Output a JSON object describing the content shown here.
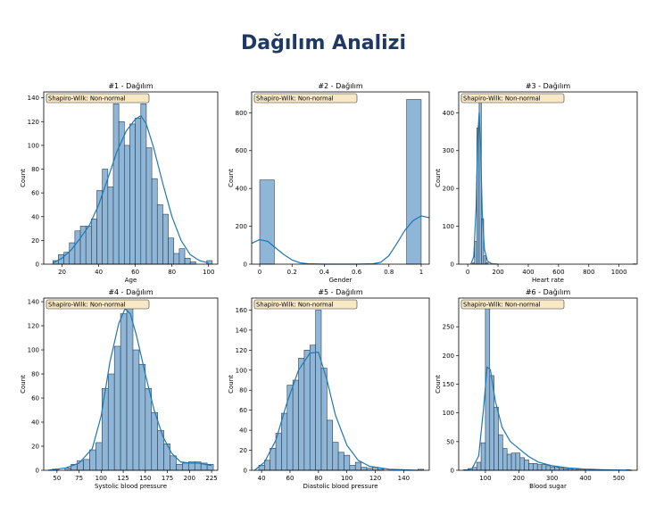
{
  "page": {
    "title": "Dağılım Analizi"
  },
  "colors": {
    "bar_fill": "#8fb6d6",
    "bar_stroke": "#2c3e50",
    "kde_line": "#1f77b4",
    "badge_fill": "#f7e8c6",
    "title_color": "#1f3864"
  },
  "chart_data": [
    {
      "type": "histogram",
      "title": "#1 - Dağılım",
      "badge": "Shapiro-Wilk: Non-normal",
      "xlabel": "Age",
      "ylabel": "Count",
      "xlim": [
        10,
        105
      ],
      "ylim": [
        0,
        145
      ],
      "xticks": [
        20,
        40,
        60,
        80,
        100
      ],
      "yticks": [
        0,
        20,
        40,
        60,
        80,
        100,
        120,
        140
      ],
      "bins": [
        {
          "x0": 15,
          "x1": 18,
          "y": 3
        },
        {
          "x0": 18,
          "x1": 21,
          "y": 8
        },
        {
          "x0": 21,
          "x1": 24,
          "y": 10
        },
        {
          "x0": 24,
          "x1": 27,
          "y": 18
        },
        {
          "x0": 27,
          "x1": 30,
          "y": 28
        },
        {
          "x0": 30,
          "x1": 33,
          "y": 32
        },
        {
          "x0": 33,
          "x1": 36,
          "y": 32
        },
        {
          "x0": 36,
          "x1": 39,
          "y": 38
        },
        {
          "x0": 39,
          "x1": 42,
          "y": 62
        },
        {
          "x0": 42,
          "x1": 45,
          "y": 80
        },
        {
          "x0": 45,
          "x1": 48,
          "y": 65
        },
        {
          "x0": 48,
          "x1": 51,
          "y": 135
        },
        {
          "x0": 51,
          "x1": 54,
          "y": 120
        },
        {
          "x0": 54,
          "x1": 57,
          "y": 100
        },
        {
          "x0": 57,
          "x1": 60,
          "y": 118
        },
        {
          "x0": 60,
          "x1": 63,
          "y": 123
        },
        {
          "x0": 63,
          "x1": 66,
          "y": 135
        },
        {
          "x0": 66,
          "x1": 69,
          "y": 98
        },
        {
          "x0": 69,
          "x1": 72,
          "y": 72
        },
        {
          "x0": 72,
          "x1": 75,
          "y": 50
        },
        {
          "x0": 75,
          "x1": 78,
          "y": 42
        },
        {
          "x0": 78,
          "x1": 81,
          "y": 22
        },
        {
          "x0": 81,
          "x1": 84,
          "y": 9
        },
        {
          "x0": 84,
          "x1": 87,
          "y": 13
        },
        {
          "x0": 87,
          "x1": 90,
          "y": 5
        },
        {
          "x0": 90,
          "x1": 93,
          "y": 2
        },
        {
          "x0": 99,
          "x1": 102,
          "y": 3
        }
      ],
      "kde": [
        [
          15,
          1
        ],
        [
          20,
          5
        ],
        [
          25,
          12
        ],
        [
          30,
          22
        ],
        [
          35,
          33
        ],
        [
          40,
          50
        ],
        [
          45,
          72
        ],
        [
          50,
          95
        ],
        [
          55,
          112
        ],
        [
          60,
          122
        ],
        [
          63,
          125
        ],
        [
          66,
          118
        ],
        [
          70,
          98
        ],
        [
          75,
          68
        ],
        [
          80,
          40
        ],
        [
          85,
          20
        ],
        [
          90,
          8
        ],
        [
          95,
          3
        ],
        [
          100,
          1
        ]
      ]
    },
    {
      "type": "histogram",
      "title": "#2 - Dağılım",
      "badge": "Shapiro-Wilk: Non-normal",
      "xlabel": "Gender",
      "ylabel": "Count",
      "xlim": [
        -0.05,
        1.05
      ],
      "ylim": [
        0,
        910
      ],
      "xticks": [
        0.0,
        0.2,
        0.4,
        0.6,
        0.8,
        1.0
      ],
      "yticks": [
        0,
        200,
        400,
        600,
        800
      ],
      "bins": [
        {
          "x0": 0.0,
          "x1": 0.09,
          "y": 445
        },
        {
          "x0": 0.91,
          "x1": 1.0,
          "y": 870
        }
      ],
      "kde": [
        [
          -0.05,
          110
        ],
        [
          0.0,
          130
        ],
        [
          0.05,
          120
        ],
        [
          0.1,
          85
        ],
        [
          0.15,
          50
        ],
        [
          0.2,
          22
        ],
        [
          0.25,
          7
        ],
        [
          0.3,
          2
        ],
        [
          0.4,
          0
        ],
        [
          0.6,
          0
        ],
        [
          0.7,
          2
        ],
        [
          0.75,
          10
        ],
        [
          0.8,
          45
        ],
        [
          0.85,
          110
        ],
        [
          0.9,
          180
        ],
        [
          0.95,
          230
        ],
        [
          1.0,
          255
        ],
        [
          1.05,
          245
        ]
      ]
    },
    {
      "type": "histogram",
      "title": "#3 - Dağılım",
      "badge": "Shapiro-Wilk: Non-normal",
      "xlabel": "Heart rate",
      "ylabel": "Count",
      "xlim": [
        -60,
        1120
      ],
      "ylim": [
        0,
        455
      ],
      "xticks": [
        0,
        200,
        400,
        600,
        800,
        1000
      ],
      "yticks": [
        0,
        100,
        200,
        300,
        400
      ],
      "bins": [
        {
          "x0": 30,
          "x1": 45,
          "y": 3
        },
        {
          "x0": 45,
          "x1": 60,
          "y": 60
        },
        {
          "x0": 60,
          "x1": 75,
          "y": 360
        },
        {
          "x0": 75,
          "x1": 90,
          "y": 440
        },
        {
          "x0": 90,
          "x1": 105,
          "y": 120
        },
        {
          "x0": 105,
          "x1": 120,
          "y": 22
        },
        {
          "x0": 120,
          "x1": 135,
          "y": 4
        },
        {
          "x0": 1095,
          "x1": 1110,
          "y": 1
        }
      ],
      "kde": [
        [
          20,
          0
        ],
        [
          40,
          20
        ],
        [
          55,
          150
        ],
        [
          65,
          330
        ],
        [
          75,
          400
        ],
        [
          85,
          310
        ],
        [
          95,
          140
        ],
        [
          110,
          40
        ],
        [
          130,
          8
        ],
        [
          160,
          1
        ],
        [
          200,
          0
        ]
      ]
    },
    {
      "type": "histogram",
      "title": "#4 - Dağılım",
      "badge": "Shapiro-Wilk: Non-normal",
      "xlabel": "Systolic blood pressure",
      "ylabel": "Count",
      "xlim": [
        35,
        232
      ],
      "ylim": [
        0,
        143
      ],
      "xticks": [
        50,
        75,
        100,
        125,
        150,
        175,
        200,
        225
      ],
      "yticks": [
        0,
        20,
        40,
        60,
        80,
        100,
        120,
        140
      ],
      "bins": [
        {
          "x0": 45,
          "x1": 52,
          "y": 1
        },
        {
          "x0": 59,
          "x1": 66,
          "y": 2
        },
        {
          "x0": 66,
          "x1": 73,
          "y": 5
        },
        {
          "x0": 73,
          "x1": 80,
          "y": 8
        },
        {
          "x0": 80,
          "x1": 87,
          "y": 9
        },
        {
          "x0": 87,
          "x1": 94,
          "y": 17
        },
        {
          "x0": 94,
          "x1": 101,
          "y": 23
        },
        {
          "x0": 101,
          "x1": 108,
          "y": 68
        },
        {
          "x0": 108,
          "x1": 115,
          "y": 80
        },
        {
          "x0": 115,
          "x1": 122,
          "y": 103
        },
        {
          "x0": 122,
          "x1": 129,
          "y": 130
        },
        {
          "x0": 129,
          "x1": 136,
          "y": 136
        },
        {
          "x0": 136,
          "x1": 143,
          "y": 100
        },
        {
          "x0": 143,
          "x1": 150,
          "y": 88
        },
        {
          "x0": 150,
          "x1": 157,
          "y": 68
        },
        {
          "x0": 157,
          "x1": 164,
          "y": 48
        },
        {
          "x0": 164,
          "x1": 171,
          "y": 33
        },
        {
          "x0": 171,
          "x1": 178,
          "y": 22
        },
        {
          "x0": 178,
          "x1": 185,
          "y": 12
        },
        {
          "x0": 185,
          "x1": 192,
          "y": 5
        },
        {
          "x0": 192,
          "x1": 199,
          "y": 6
        },
        {
          "x0": 199,
          "x1": 206,
          "y": 7
        },
        {
          "x0": 206,
          "x1": 213,
          "y": 7
        },
        {
          "x0": 213,
          "x1": 220,
          "y": 6
        },
        {
          "x0": 220,
          "x1": 227,
          "y": 5
        }
      ],
      "kde": [
        [
          40,
          0
        ],
        [
          60,
          2
        ],
        [
          75,
          6
        ],
        [
          90,
          18
        ],
        [
          100,
          45
        ],
        [
          110,
          90
        ],
        [
          120,
          122
        ],
        [
          127,
          134
        ],
        [
          133,
          130
        ],
        [
          140,
          112
        ],
        [
          150,
          80
        ],
        [
          160,
          50
        ],
        [
          170,
          28
        ],
        [
          180,
          14
        ],
        [
          190,
          7
        ],
        [
          200,
          6
        ],
        [
          210,
          6
        ],
        [
          225,
          4
        ]
      ]
    },
    {
      "type": "histogram",
      "title": "#5 - Dağılım",
      "badge": "Shapiro-Wilk: Non-normal",
      "xlabel": "Diastolic blood pressure",
      "ylabel": "Count",
      "xlim": [
        33,
        158
      ],
      "ylim": [
        0,
        172
      ],
      "xticks": [
        40,
        60,
        80,
        100,
        120,
        140
      ],
      "yticks": [
        0,
        20,
        40,
        60,
        80,
        100,
        120,
        140,
        160
      ],
      "bins": [
        {
          "x0": 38,
          "x1": 42,
          "y": 5
        },
        {
          "x0": 42,
          "x1": 46,
          "y": 10
        },
        {
          "x0": 46,
          "x1": 50,
          "y": 22
        },
        {
          "x0": 50,
          "x1": 54,
          "y": 37
        },
        {
          "x0": 54,
          "x1": 58,
          "y": 57
        },
        {
          "x0": 58,
          "x1": 62,
          "y": 85
        },
        {
          "x0": 62,
          "x1": 66,
          "y": 90
        },
        {
          "x0": 66,
          "x1": 70,
          "y": 112
        },
        {
          "x0": 70,
          "x1": 74,
          "y": 120
        },
        {
          "x0": 74,
          "x1": 78,
          "y": 125
        },
        {
          "x0": 78,
          "x1": 82,
          "y": 160
        },
        {
          "x0": 82,
          "x1": 86,
          "y": 102
        },
        {
          "x0": 86,
          "x1": 90,
          "y": 50
        },
        {
          "x0": 90,
          "x1": 94,
          "y": 28
        },
        {
          "x0": 94,
          "x1": 98,
          "y": 18
        },
        {
          "x0": 98,
          "x1": 102,
          "y": 15
        },
        {
          "x0": 102,
          "x1": 106,
          "y": 5
        },
        {
          "x0": 106,
          "x1": 110,
          "y": 8
        },
        {
          "x0": 110,
          "x1": 114,
          "y": 3
        },
        {
          "x0": 114,
          "x1": 118,
          "y": 2
        },
        {
          "x0": 118,
          "x1": 122,
          "y": 3
        },
        {
          "x0": 122,
          "x1": 126,
          "y": 1
        },
        {
          "x0": 150,
          "x1": 154,
          "y": 1
        }
      ],
      "kde": [
        [
          35,
          0
        ],
        [
          42,
          8
        ],
        [
          50,
          30
        ],
        [
          58,
          68
        ],
        [
          66,
          100
        ],
        [
          74,
          117
        ],
        [
          80,
          118
        ],
        [
          86,
          90
        ],
        [
          92,
          55
        ],
        [
          100,
          25
        ],
        [
          108,
          10
        ],
        [
          116,
          4
        ],
        [
          130,
          1
        ],
        [
          150,
          0
        ]
      ]
    },
    {
      "type": "histogram",
      "title": "#6 - Dağılım",
      "badge": "Shapiro-Wilk: Non-normal",
      "xlabel": "Blood sugar",
      "ylabel": "Count",
      "xlim": [
        20,
        555
      ],
      "ylim": [
        0,
        300
      ],
      "xticks": [
        100,
        200,
        300,
        400,
        500
      ],
      "yticks": [
        0,
        50,
        100,
        150,
        200,
        250
      ],
      "bins": [
        {
          "x0": 35,
          "x1": 48,
          "y": 1
        },
        {
          "x0": 48,
          "x1": 61,
          "y": 3
        },
        {
          "x0": 61,
          "x1": 74,
          "y": 5
        },
        {
          "x0": 74,
          "x1": 87,
          "y": 14
        },
        {
          "x0": 87,
          "x1": 100,
          "y": 48
        },
        {
          "x0": 100,
          "x1": 113,
          "y": 295
        },
        {
          "x0": 113,
          "x1": 126,
          "y": 165
        },
        {
          "x0": 126,
          "x1": 139,
          "y": 110
        },
        {
          "x0": 139,
          "x1": 152,
          "y": 62
        },
        {
          "x0": 152,
          "x1": 165,
          "y": 38
        },
        {
          "x0": 165,
          "x1": 178,
          "y": 28
        },
        {
          "x0": 178,
          "x1": 191,
          "y": 30
        },
        {
          "x0": 191,
          "x1": 204,
          "y": 30
        },
        {
          "x0": 204,
          "x1": 217,
          "y": 22
        },
        {
          "x0": 217,
          "x1": 230,
          "y": 18
        },
        {
          "x0": 230,
          "x1": 243,
          "y": 12
        },
        {
          "x0": 243,
          "x1": 256,
          "y": 12
        },
        {
          "x0": 256,
          "x1": 269,
          "y": 10
        },
        {
          "x0": 269,
          "x1": 282,
          "y": 10
        },
        {
          "x0": 282,
          "x1": 295,
          "y": 8
        },
        {
          "x0": 295,
          "x1": 308,
          "y": 6
        },
        {
          "x0": 308,
          "x1": 321,
          "y": 5
        },
        {
          "x0": 321,
          "x1": 334,
          "y": 4
        },
        {
          "x0": 334,
          "x1": 347,
          "y": 3
        },
        {
          "x0": 347,
          "x1": 360,
          "y": 3
        },
        {
          "x0": 360,
          "x1": 373,
          "y": 3
        },
        {
          "x0": 373,
          "x1": 386,
          "y": 2
        },
        {
          "x0": 386,
          "x1": 399,
          "y": 2
        },
        {
          "x0": 399,
          "x1": 412,
          "y": 2
        },
        {
          "x0": 412,
          "x1": 425,
          "y": 2
        },
        {
          "x0": 425,
          "x1": 438,
          "y": 1
        },
        {
          "x0": 438,
          "x1": 451,
          "y": 1
        },
        {
          "x0": 451,
          "x1": 464,
          "y": 1
        },
        {
          "x0": 464,
          "x1": 477,
          "y": 1
        },
        {
          "x0": 521,
          "x1": 534,
          "y": 1
        }
      ],
      "kde": [
        [
          40,
          0
        ],
        [
          60,
          3
        ],
        [
          80,
          25
        ],
        [
          95,
          110
        ],
        [
          105,
          180
        ],
        [
          115,
          175
        ],
        [
          130,
          120
        ],
        [
          150,
          75
        ],
        [
          175,
          50
        ],
        [
          200,
          38
        ],
        [
          230,
          24
        ],
        [
          260,
          14
        ],
        [
          300,
          8
        ],
        [
          350,
          4
        ],
        [
          400,
          2
        ],
        [
          450,
          1
        ],
        [
          540,
          0
        ]
      ]
    }
  ]
}
